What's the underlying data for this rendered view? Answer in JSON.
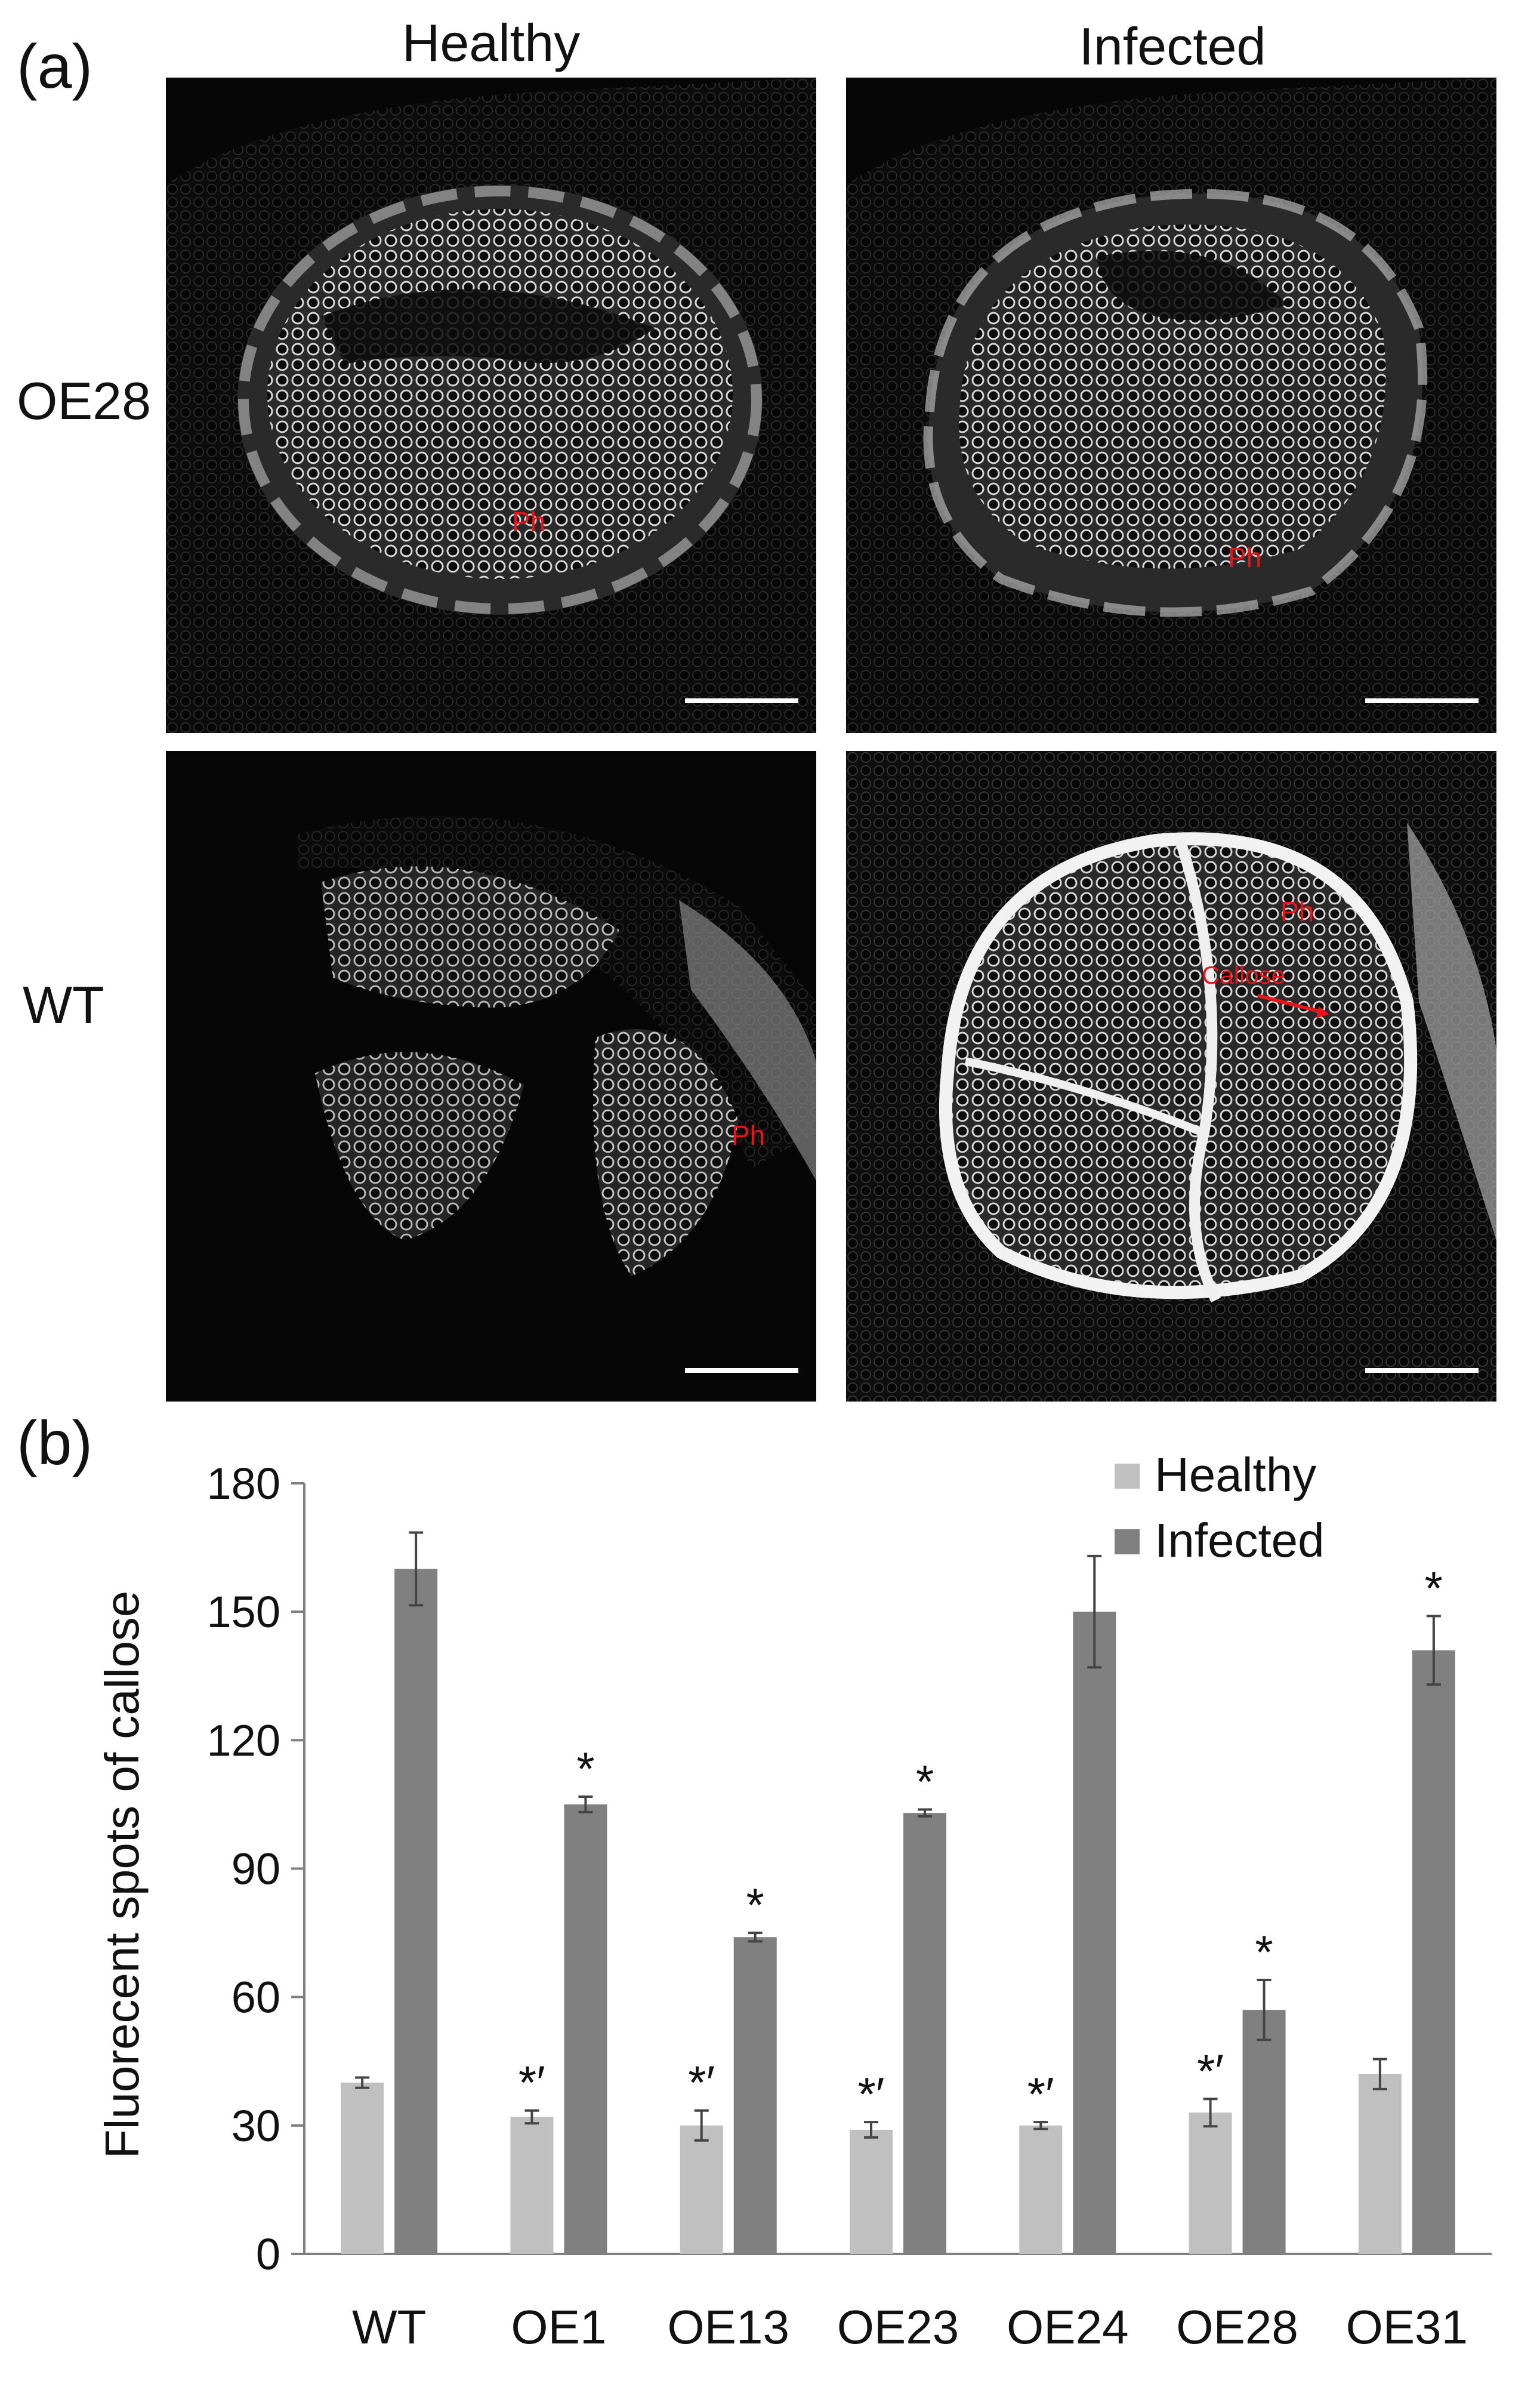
{
  "figure": {
    "panel_a_label": "(a)",
    "panel_b_label": "(b)",
    "columns": [
      "Healthy",
      "Infected"
    ],
    "rows": [
      "OE28",
      "WT"
    ],
    "micrographs": [
      {
        "row": "OE28",
        "column": "Healthy",
        "labels": [
          "Ph"
        ]
      },
      {
        "row": "OE28",
        "column": "Infected",
        "labels": [
          "Ph"
        ]
      },
      {
        "row": "WT",
        "column": "Healthy",
        "labels": [
          "Ph"
        ]
      },
      {
        "row": "WT",
        "column": "Infected",
        "labels": [
          "Ph",
          "Callose"
        ]
      }
    ],
    "annotation_color": "#e8141a"
  },
  "chart_data": {
    "type": "bar",
    "title": "",
    "xlabel": "",
    "ylabel": "Fluorecent spots of callose",
    "ylim": [
      0,
      180
    ],
    "yticks": [
      0,
      30,
      60,
      90,
      120,
      150,
      180
    ],
    "categories": [
      "WT",
      "OE1",
      "OE13",
      "OE23",
      "OE24",
      "OE28",
      "OE31"
    ],
    "series": [
      {
        "name": "Healthy",
        "color": "#c0c0c0",
        "values": [
          40,
          32,
          30,
          29,
          30,
          33,
          42
        ],
        "errors": [
          1.2,
          1.5,
          3.5,
          1.8,
          0.8,
          3.2,
          3.5
        ],
        "markers": [
          "",
          "*′",
          "*′",
          "*′",
          "*′",
          "*′",
          ""
        ]
      },
      {
        "name": "Infected",
        "color": "#808080",
        "values": [
          160,
          105,
          74,
          103,
          150,
          57,
          141
        ],
        "errors": [
          8.5,
          1.8,
          1.0,
          0.8,
          13.0,
          7.0,
          8.0
        ],
        "markers": [
          "",
          "*",
          "*",
          "*",
          "",
          "*",
          "*"
        ]
      }
    ],
    "legend_position": "top-right"
  }
}
